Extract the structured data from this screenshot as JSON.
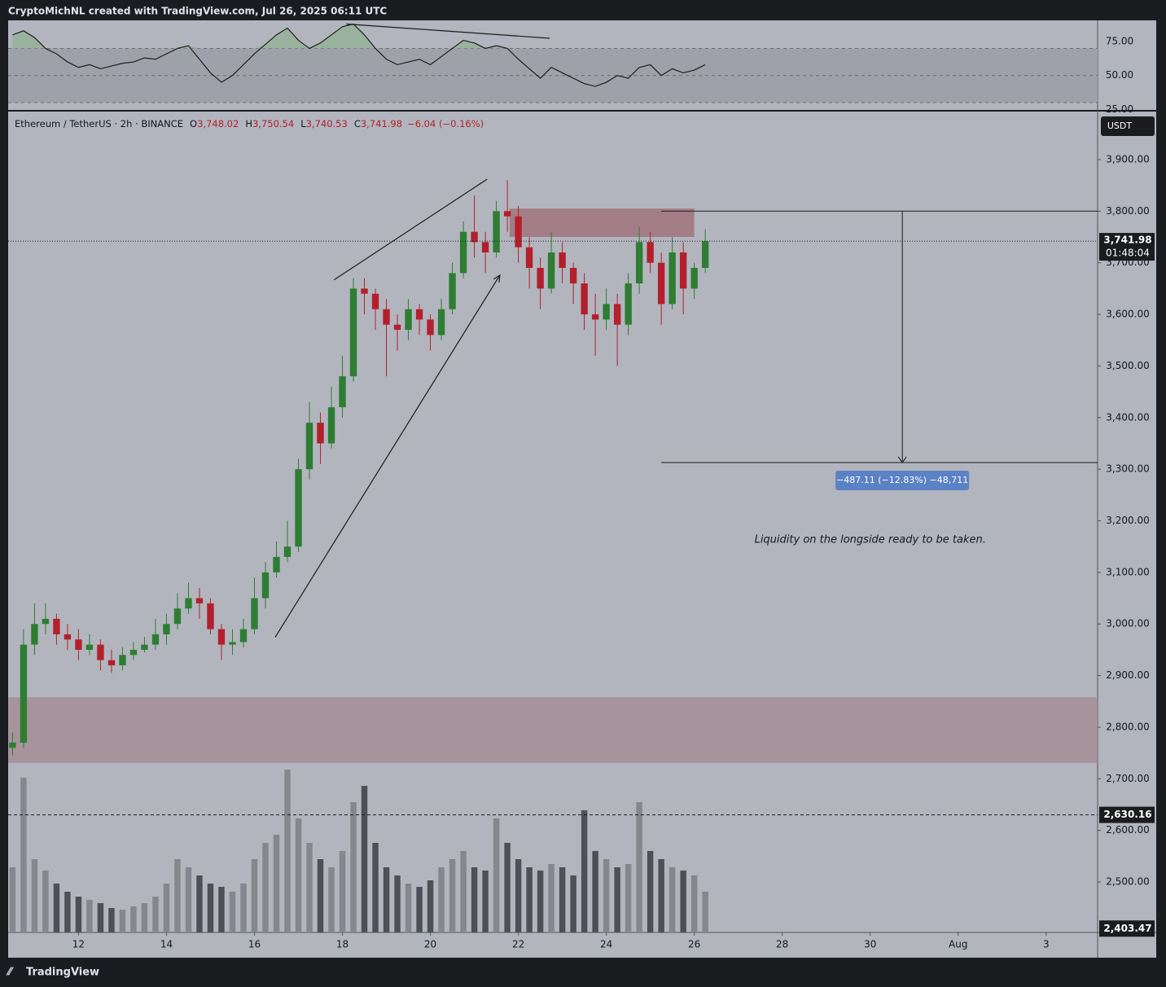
{
  "header": "CryptoMichNL created with TradingView.com, Jul 26, 2025 06:11 UTC",
  "footer": "TradingView",
  "chart_data": [
    {
      "type": "candlestick",
      "title": "Ethereum / TetherUS · 2h · BINANCE",
      "ohlc": [
        [
          "O",
          "3,748.02"
        ],
        [
          "H",
          "3,750.54"
        ],
        [
          "L",
          "3,740.53"
        ],
        [
          "C",
          "3,741.98"
        ]
      ],
      "change": "−6.04 (−0.16%)",
      "x": [
        10.5,
        10.75,
        11,
        11.25,
        11.5,
        11.75,
        12,
        12.25,
        12.5,
        12.75,
        13,
        13.25,
        13.5,
        13.75,
        14,
        14.25,
        14.5,
        14.75,
        15,
        15.25,
        15.5,
        15.75,
        16,
        16.25,
        16.5,
        16.75,
        17,
        17.25,
        17.5,
        17.75,
        18,
        18.25,
        18.5,
        18.75,
        19,
        19.25,
        19.5,
        19.75,
        20,
        20.25,
        20.5,
        20.75,
        21,
        21.25,
        21.5,
        21.75,
        22,
        22.25,
        22.5,
        22.75,
        23,
        23.25,
        23.5,
        23.75,
        24,
        24.25,
        24.5,
        24.75,
        25,
        25.25,
        25.5,
        25.75,
        26,
        26.25
      ],
      "candles": [
        [
          2760,
          2790,
          2745,
          2770
        ],
        [
          2770,
          2990,
          2760,
          2960
        ],
        [
          2960,
          3040,
          2940,
          3000
        ],
        [
          3000,
          3040,
          2980,
          3010
        ],
        [
          3010,
          3020,
          2960,
          2980
        ],
        [
          2980,
          3000,
          2950,
          2970
        ],
        [
          2970,
          2990,
          2930,
          2950
        ],
        [
          2950,
          2980,
          2940,
          2960
        ],
        [
          2960,
          2970,
          2910,
          2930
        ],
        [
          2930,
          2950,
          2905,
          2920
        ],
        [
          2920,
          2955,
          2910,
          2940
        ],
        [
          2940,
          2965,
          2930,
          2950
        ],
        [
          2950,
          2975,
          2945,
          2960
        ],
        [
          2960,
          3010,
          2950,
          2980
        ],
        [
          2980,
          3020,
          2960,
          3000
        ],
        [
          3000,
          3060,
          2990,
          3030
        ],
        [
          3030,
          3080,
          3020,
          3050
        ],
        [
          3050,
          3070,
          3010,
          3040
        ],
        [
          3040,
          3050,
          2980,
          2990
        ],
        [
          2990,
          3000,
          2930,
          2960
        ],
        [
          2960,
          2990,
          2940,
          2965
        ],
        [
          2965,
          3010,
          2955,
          2990
        ],
        [
          2990,
          3090,
          2980,
          3050
        ],
        [
          3050,
          3120,
          3030,
          3100
        ],
        [
          3100,
          3160,
          3090,
          3130
        ],
        [
          3130,
          3200,
          3120,
          3150
        ],
        [
          3150,
          3320,
          3140,
          3300
        ],
        [
          3300,
          3430,
          3280,
          3390
        ],
        [
          3390,
          3410,
          3310,
          3350
        ],
        [
          3350,
          3460,
          3340,
          3420
        ],
        [
          3420,
          3520,
          3400,
          3480
        ],
        [
          3480,
          3670,
          3470,
          3650
        ],
        [
          3650,
          3670,
          3600,
          3640
        ],
        [
          3640,
          3650,
          3570,
          3610
        ],
        [
          3610,
          3630,
          3480,
          3580
        ],
        [
          3580,
          3600,
          3530,
          3570
        ],
        [
          3570,
          3630,
          3550,
          3610
        ],
        [
          3610,
          3620,
          3560,
          3590
        ],
        [
          3590,
          3600,
          3530,
          3560
        ],
        [
          3560,
          3630,
          3550,
          3610
        ],
        [
          3610,
          3700,
          3600,
          3680
        ],
        [
          3680,
          3780,
          3670,
          3760
        ],
        [
          3760,
          3830,
          3710,
          3740
        ],
        [
          3740,
          3760,
          3680,
          3720
        ],
        [
          3720,
          3820,
          3710,
          3800
        ],
        [
          3800,
          3860,
          3760,
          3790
        ],
        [
          3790,
          3810,
          3700,
          3730
        ],
        [
          3730,
          3750,
          3650,
          3690
        ],
        [
          3690,
          3710,
          3610,
          3650
        ],
        [
          3650,
          3760,
          3640,
          3720
        ],
        [
          3720,
          3740,
          3660,
          3690
        ],
        [
          3690,
          3700,
          3620,
          3660
        ],
        [
          3660,
          3680,
          3570,
          3600
        ],
        [
          3600,
          3640,
          3520,
          3590
        ],
        [
          3590,
          3650,
          3570,
          3620
        ],
        [
          3620,
          3640,
          3500,
          3580
        ],
        [
          3580,
          3680,
          3560,
          3660
        ],
        [
          3660,
          3770,
          3640,
          3740
        ],
        [
          3740,
          3760,
          3680,
          3700
        ],
        [
          3700,
          3720,
          3580,
          3620
        ],
        [
          3620,
          3750,
          3610,
          3720
        ],
        [
          3720,
          3740,
          3600,
          3650
        ],
        [
          3650,
          3700,
          3630,
          3690
        ],
        [
          3690,
          3765,
          3680,
          3742
        ]
      ],
      "up_color": "#2e7d32",
      "down_color": "#b3202c",
      "volume": [
        40,
        95,
        45,
        38,
        30,
        25,
        22,
        20,
        18,
        15,
        14,
        16,
        18,
        22,
        30,
        45,
        40,
        35,
        30,
        28,
        25,
        30,
        45,
        55,
        60,
        100,
        70,
        55,
        45,
        40,
        50,
        80,
        90,
        55,
        40,
        35,
        30,
        28,
        32,
        40,
        45,
        50,
        40,
        38,
        70,
        55,
        45,
        40,
        38,
        42,
        40,
        35,
        75,
        50,
        45,
        40,
        42,
        80,
        50,
        45,
        40,
        38,
        35,
        25
      ],
      "volume_up_color": "#85878d",
      "volume_down_color": "#4e5055",
      "xlim": [
        10.4,
        35.17
      ],
      "xticks": [
        12,
        14,
        16,
        18,
        20,
        22,
        24,
        26,
        28,
        30,
        {
          "value": 32,
          "label": "Aug"
        },
        {
          "value": 34,
          "label": "3"
        }
      ],
      "ylim": [
        2402.3,
        3993
      ],
      "yticks": [
        {
          "value": 2500,
          "label": "2,500.00"
        },
        {
          "value": 2600,
          "label": "2,600.00"
        },
        {
          "value": 2700,
          "label": "2,700.00"
        },
        {
          "value": 2800,
          "label": "2,800.00"
        },
        {
          "value": 2900,
          "label": "2,900.00"
        },
        {
          "value": 3000,
          "label": "3,000.00"
        },
        {
          "value": 3100,
          "label": "3,100.00"
        },
        {
          "value": 3200,
          "label": "3,200.00"
        },
        {
          "value": 3300,
          "label": "3,300.00"
        },
        {
          "value": 3400,
          "label": "3,400.00"
        },
        {
          "value": 3500,
          "label": "3,500.00"
        },
        {
          "value": 3600,
          "label": "3,600.00"
        },
        {
          "value": 3700,
          "label": "3,700.00"
        },
        {
          "value": 3800,
          "label": "3,800.00"
        },
        {
          "value": 3900,
          "label": "3,900.00"
        }
      ],
      "grid": false,
      "currency": "USDT",
      "last_price": {
        "value": 3741.98,
        "label": "3,741.98"
      },
      "countdown": "01:48:04",
      "price_line": {
        "value": 2630.16,
        "label": "2,630.16"
      },
      "scale_bottom": {
        "value": 2403.47,
        "label": "2,403.47"
      },
      "zones": [
        {
          "x": [
            21.8,
            26.0
          ],
          "y": [
            3750,
            3805
          ],
          "color": "#a0747e"
        },
        {
          "x": [
            10.4,
            35.17
          ],
          "y": [
            2731,
            2858
          ],
          "color": "#a38d97"
        }
      ],
      "trend_lines": [
        [
          17.81,
          3667,
          21.29,
          3862
        ]
      ],
      "arrows": [
        [
          16.47,
          2974,
          21.58,
          3676
        ]
      ],
      "measure": {
        "x": [
          25.25,
          35.17
        ],
        "arrow_x": 30.73,
        "from": 3800,
        "to": 3312.89,
        "label": "−487.11 (−12.83%) −48,711"
      },
      "note": {
        "x": 30.0,
        "y": 3163,
        "text": "Liquidity on the longside ready to be taken."
      }
    },
    {
      "type": "line",
      "values": [
        80,
        83,
        78,
        70,
        66,
        60,
        56,
        58,
        55,
        57,
        59,
        60,
        63,
        62,
        66,
        70,
        72,
        62,
        52,
        45,
        50,
        58,
        66,
        73,
        80,
        85,
        76,
        70,
        74,
        80,
        86,
        88,
        80,
        70,
        62,
        58,
        60,
        62,
        58,
        64,
        70,
        76,
        74,
        70,
        72,
        70,
        62,
        55,
        48,
        56,
        52,
        48,
        44,
        42,
        45,
        50,
        48,
        56,
        58,
        50,
        55,
        52,
        54,
        58
      ],
      "color": "#1e1e1e",
      "xlim": [
        10.4,
        35.17
      ],
      "ylim": [
        24.6,
        90.7
      ],
      "yticks": [
        {
          "value": 25,
          "label": "25.00"
        },
        {
          "value": 50,
          "label": "50.00"
        },
        {
          "value": 75,
          "label": "75.00"
        }
      ],
      "band": [
        30,
        70
      ],
      "midline": 50,
      "trend_lines": [
        [
          18.09,
          88,
          22.71,
          77.5
        ]
      ]
    }
  ]
}
